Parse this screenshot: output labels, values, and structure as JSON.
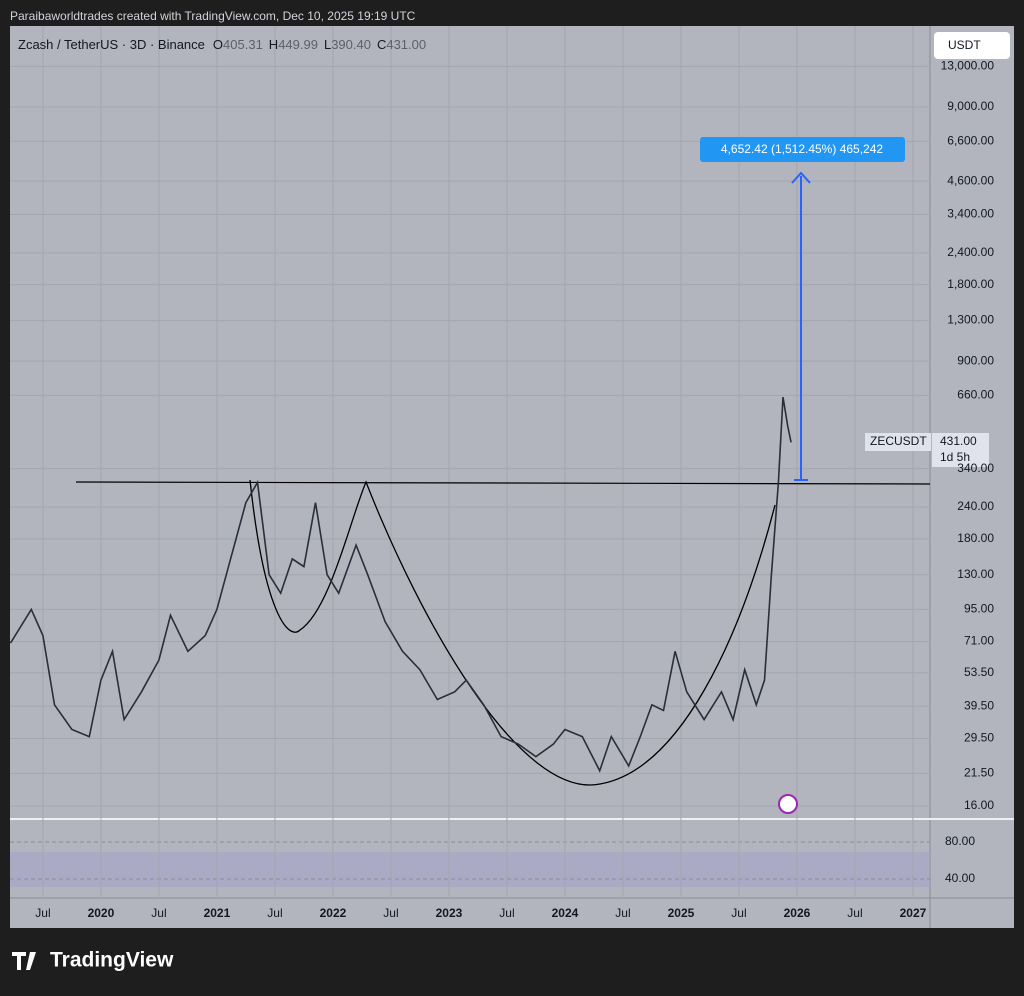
{
  "header": {
    "credit": "Paraibaworldtrades created with TradingView.com, Dec 10, 2025 19:19 UTC",
    "symbol": "Zcash / TetherUS · 3D · Binance",
    "ohlc": [
      {
        "key": "O",
        "value": "405.31"
      },
      {
        "key": "H",
        "value": "449.99"
      },
      {
        "key": "L",
        "value": "390.40"
      },
      {
        "key": "C",
        "value": "431.00"
      }
    ]
  },
  "currency": "USDT",
  "price_tag": {
    "symbol": "ZECUSDT",
    "price": "431.00",
    "countdown": "1d 5h"
  },
  "measure_label": "4,652.42 (1,512.45%) 465,242",
  "logo": "TradingView",
  "chart_data": {
    "type": "line",
    "log_scale": true,
    "color": "#2a2e39",
    "x": [
      2019.22,
      2019.4,
      2019.5,
      2019.6,
      2019.75,
      2019.9,
      2020.0,
      2020.1,
      2020.2,
      2020.35,
      2020.5,
      2020.6,
      2020.75,
      2020.9,
      2021.0,
      2021.1,
      2021.25,
      2021.35,
      2021.45,
      2021.55,
      2021.65,
      2021.75,
      2021.85,
      2021.95,
      2022.05,
      2022.2,
      2022.3,
      2022.45,
      2022.6,
      2022.75,
      2022.9,
      2023.05,
      2023.15,
      2023.3,
      2023.45,
      2023.6,
      2023.75,
      2023.9,
      2024.0,
      2024.15,
      2024.3,
      2024.4,
      2024.55,
      2024.65,
      2024.75,
      2024.85,
      2024.95,
      2025.05,
      2025.2,
      2025.35,
      2025.45,
      2025.55,
      2025.65,
      2025.72,
      2025.78,
      2025.84,
      2025.88,
      2025.92,
      2025.95
    ],
    "values": [
      70,
      95,
      75,
      40,
      32,
      30,
      50,
      65,
      35,
      45,
      60,
      90,
      65,
      75,
      95,
      140,
      250,
      300,
      130,
      110,
      150,
      140,
      250,
      130,
      110,
      170,
      130,
      85,
      65,
      55,
      42,
      45,
      50,
      40,
      30,
      28,
      25,
      28,
      32,
      30,
      22,
      30,
      23,
      30,
      40,
      38,
      65,
      45,
      35,
      45,
      35,
      55,
      40,
      50,
      130,
      300,
      650,
      500,
      431
    ],
    "xlim": [
      2019.216,
      2027.147
    ],
    "xticks": [
      {
        "value": 2019.5,
        "label": "Jul"
      },
      2020,
      {
        "value": 2020.5,
        "label": "Jul"
      },
      2021,
      {
        "value": 2021.5,
        "label": "Jul"
      },
      2022,
      {
        "value": 2022.5,
        "label": "Jul"
      },
      2023,
      {
        "value": 2023.5,
        "label": "Jul"
      },
      2024,
      {
        "value": 2024.5,
        "label": "Jul"
      },
      2025,
      {
        "value": 2025.5,
        "label": "Jul"
      },
      2026,
      {
        "value": 2026.5,
        "label": "Jul"
      },
      2027
    ],
    "ylim": [
      14.35,
      18080
    ],
    "yticks": [
      {
        "value": 16,
        "label": "16.00"
      },
      {
        "value": 21.5,
        "label": "21.50"
      },
      {
        "value": 29.5,
        "label": "29.50"
      },
      {
        "value": 39.5,
        "label": "39.50"
      },
      {
        "value": 53.5,
        "label": "53.50"
      },
      {
        "value": 71,
        "label": "71.00"
      },
      {
        "value": 95,
        "label": "95.00"
      },
      {
        "value": 130,
        "label": "130.00"
      },
      {
        "value": 180,
        "label": "180.00"
      },
      {
        "value": 240,
        "label": "240.00"
      },
      {
        "value": 340,
        "label": "340.00"
      },
      {
        "value": 660,
        "label": "660.00"
      },
      {
        "value": 900,
        "label": "900.00"
      },
      {
        "value": 1300,
        "label": "1,300.00"
      },
      {
        "value": 1800,
        "label": "1,800.00"
      },
      {
        "value": 2400,
        "label": "2,400.00"
      },
      {
        "value": 3400,
        "label": "3,400.00"
      },
      {
        "value": 4600,
        "label": "4,600.00"
      },
      {
        "value": 6600,
        "label": "6,600.00"
      },
      {
        "value": 9000,
        "label": "9,000.00"
      },
      {
        "value": 13000,
        "label": "13,000.00"
      }
    ],
    "rsi_ylim": [
      19.5,
      103.8
    ],
    "rsi_yticks": [
      {
        "value": 80,
        "label": "80.00"
      },
      {
        "value": 40,
        "label": "40.00"
      }
    ],
    "grid": true
  }
}
